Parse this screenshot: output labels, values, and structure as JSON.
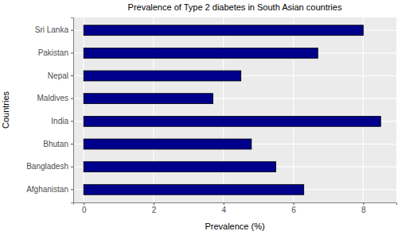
{
  "chart_data": {
    "type": "bar",
    "orientation": "horizontal",
    "title": "Prevalence of Type 2 diabetes in South Asian countries",
    "x_label": "Prevalence (%)",
    "y_label": "Countries",
    "categories": [
      "Sri Lanka",
      "Pakistan",
      "Nepal",
      "Maldives",
      "India",
      "Bhutan",
      "Bangladesh",
      "Afghanistan"
    ],
    "values": [
      8.0,
      6.7,
      4.5,
      3.7,
      8.5,
      4.8,
      5.5,
      6.3
    ],
    "color": "#00008b",
    "xlim": [
      -0.3,
      8.95
    ],
    "xticks": [
      0,
      2,
      4,
      6,
      8
    ],
    "grid": true
  }
}
